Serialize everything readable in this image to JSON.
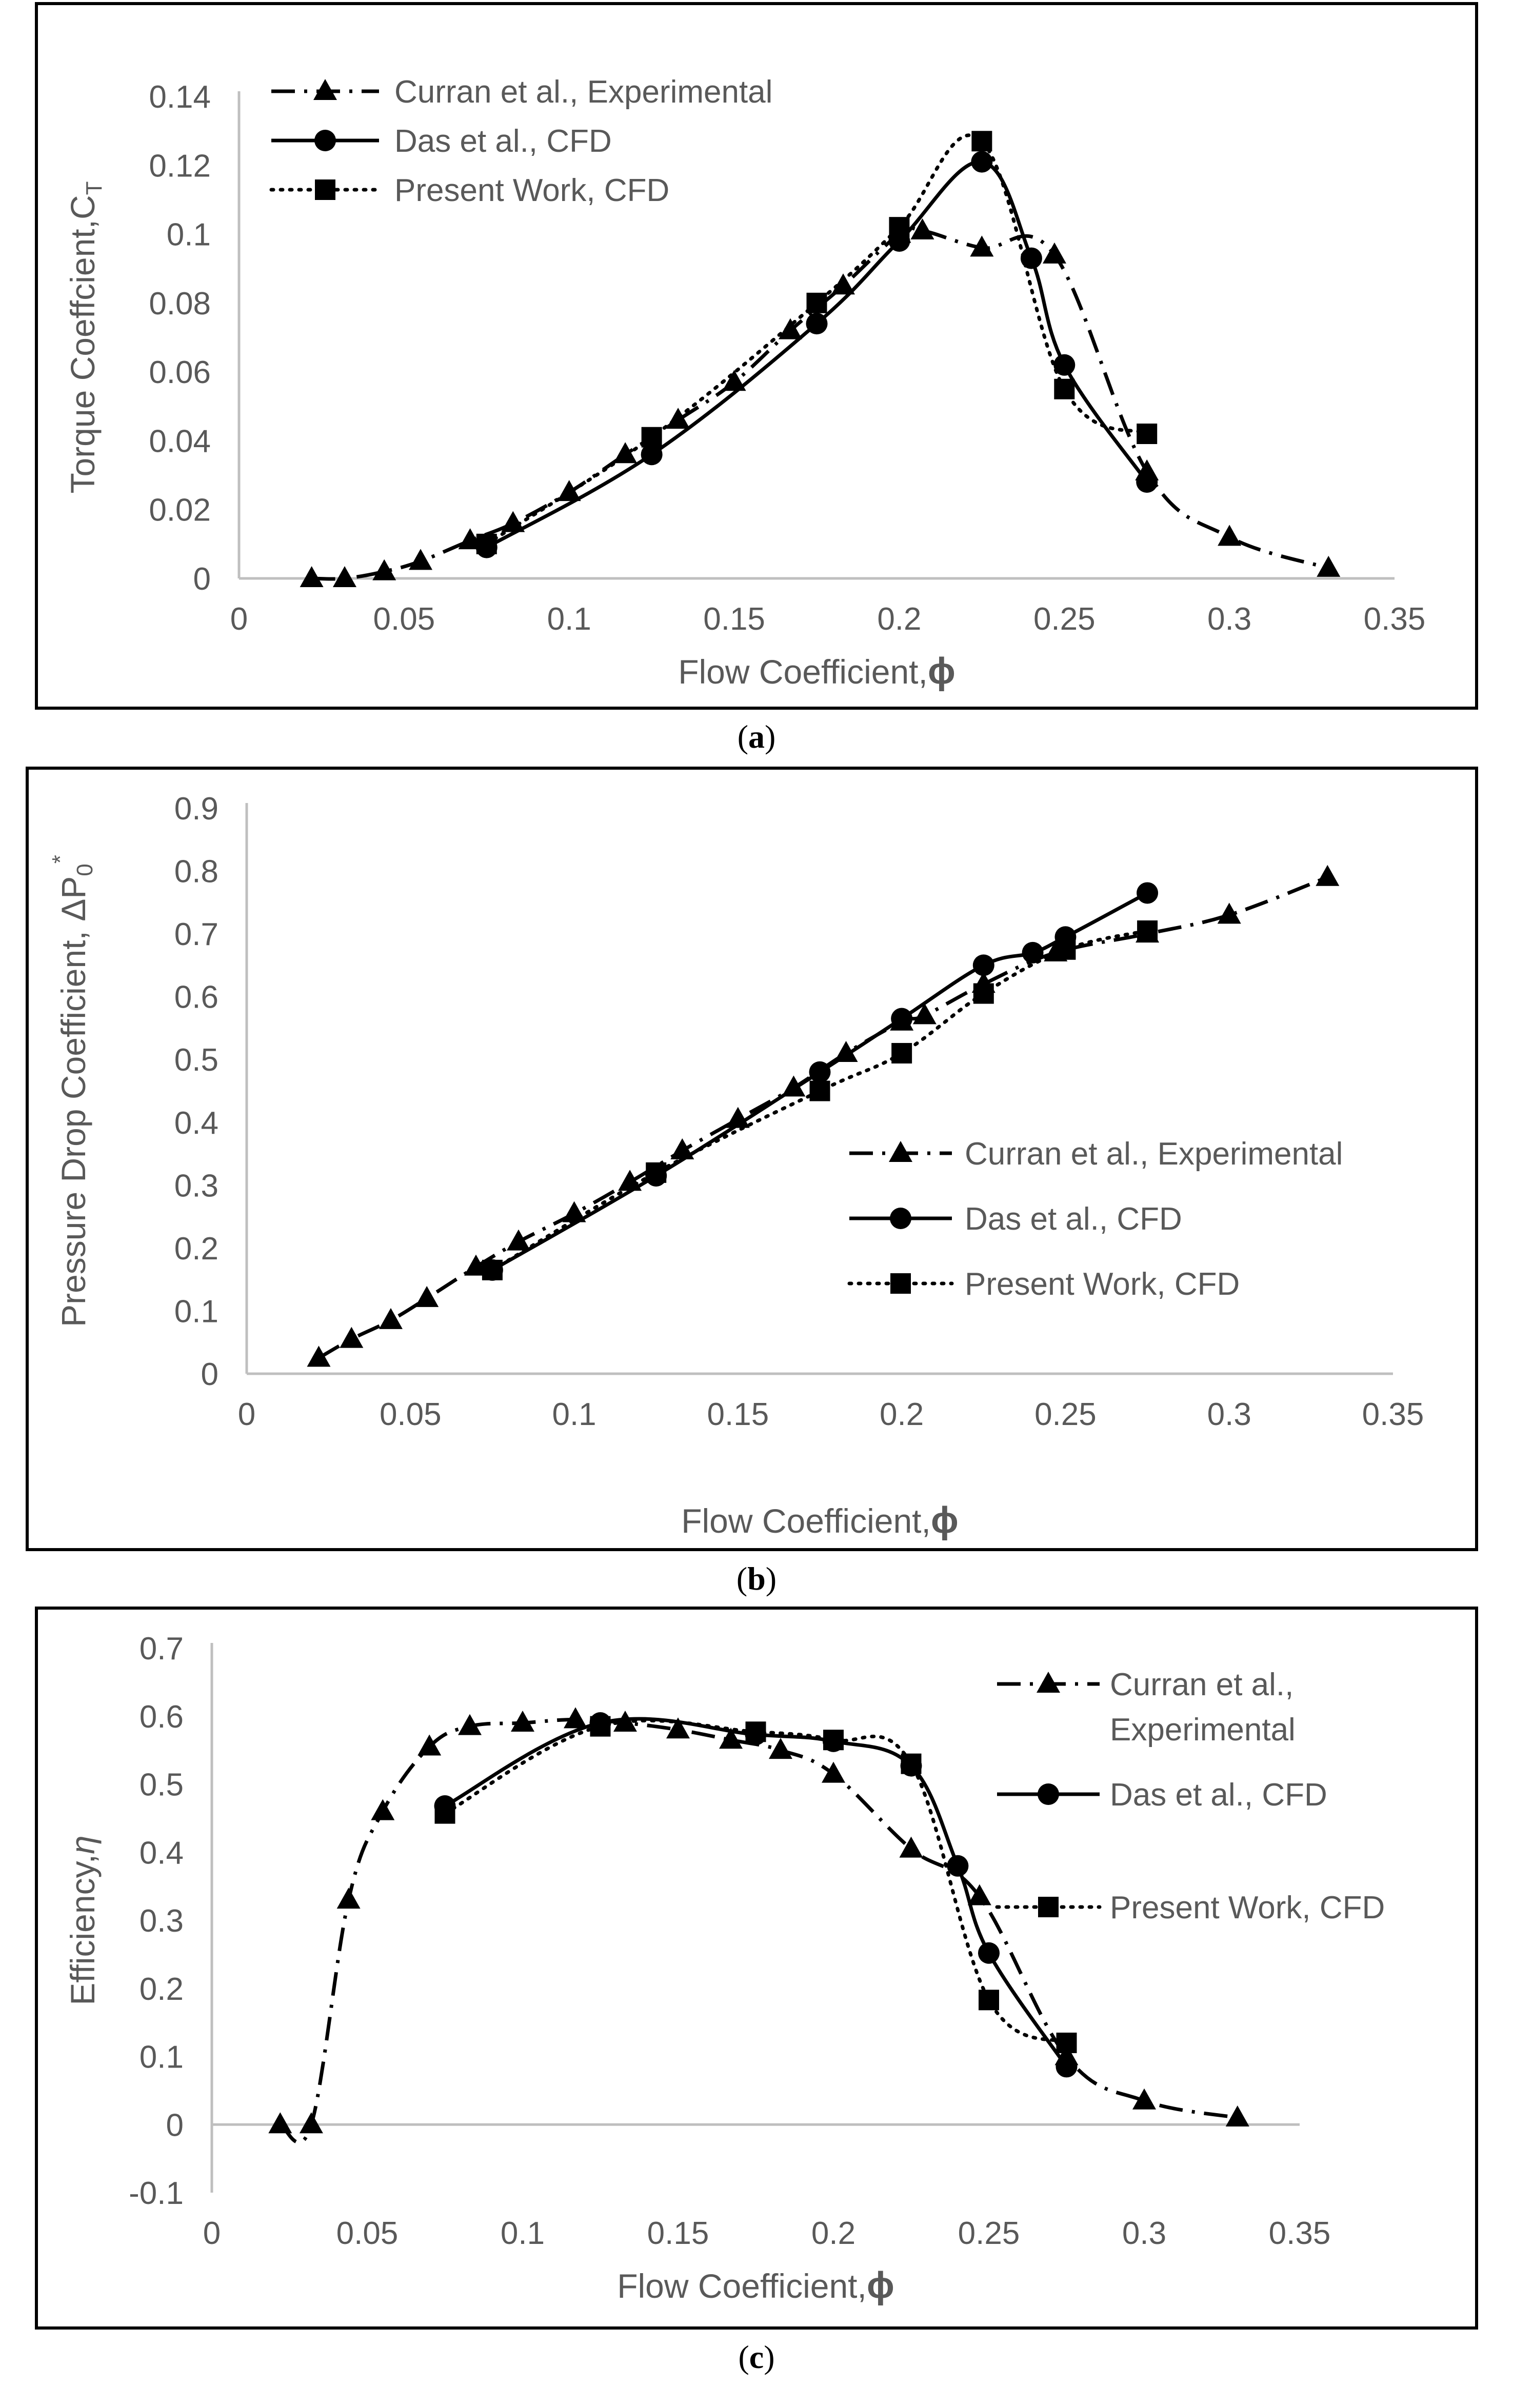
{
  "colors": {
    "series": "#000000",
    "text": "#595959",
    "axis": "#bfbfbf"
  },
  "chart_data": [
    {
      "id": "a",
      "caption": "a",
      "type": "line",
      "xlabel": "Flow Coefficient,",
      "xsymbol": "ϕ",
      "ylabel": "Torque Coeffcient,C",
      "ylabel_sub": "T",
      "xlim": [
        0,
        0.35
      ],
      "ylim": [
        0,
        0.14
      ],
      "x_ticks": [
        "0",
        "0.05",
        "0.1",
        "0.15",
        "0.2",
        "0.25",
        "0.3",
        "0.35"
      ],
      "y_ticks": [
        "0",
        "0.02",
        "0.04",
        "0.06",
        "0.08",
        "0.1",
        "0.12",
        "0.14"
      ],
      "legend_position": "top-left",
      "series": [
        {
          "name": "Curran et al., Experimental",
          "marker": "triangle",
          "dash": "dashdot",
          "x": [
            0.022,
            0.032,
            0.044,
            0.055,
            0.07,
            0.083,
            0.1,
            0.117,
            0.133,
            0.15,
            0.167,
            0.183,
            0.2,
            0.207,
            0.225,
            0.247,
            0.275,
            0.3,
            0.33
          ],
          "y": [
            0.0,
            0.0,
            0.002,
            0.005,
            0.011,
            0.016,
            0.025,
            0.036,
            0.046,
            0.057,
            0.072,
            0.085,
            0.1,
            0.101,
            0.096,
            0.094,
            0.031,
            0.012,
            0.003
          ]
        },
        {
          "name": "Das et al., CFD",
          "marker": "circle",
          "dash": "solid",
          "x": [
            0.075,
            0.125,
            0.175,
            0.2,
            0.225,
            0.24,
            0.25,
            0.275
          ],
          "y": [
            0.009,
            0.036,
            0.074,
            0.098,
            0.121,
            0.093,
            0.062,
            0.028
          ]
        },
        {
          "name": "Present Work, CFD",
          "marker": "square",
          "dash": "dotted",
          "x": [
            0.075,
            0.125,
            0.175,
            0.2,
            0.225,
            0.25,
            0.275
          ],
          "y": [
            0.01,
            0.041,
            0.08,
            0.102,
            0.127,
            0.055,
            0.042
          ]
        }
      ]
    },
    {
      "id": "b",
      "caption": "b",
      "type": "line",
      "xlabel": "Flow Coefficient,",
      "xsymbol": "ϕ",
      "ylabel": "Pressure Drop Coefficient, ΔP",
      "ylabel_sub": "0",
      "ylabel_sup": "*",
      "xlim": [
        0,
        0.35
      ],
      "ylim": [
        0,
        0.9
      ],
      "x_ticks": [
        "0",
        "0.05",
        "0.1",
        "0.15",
        "0.2",
        "0.25",
        "0.3",
        "0.35"
      ],
      "y_ticks": [
        "0",
        "0.1",
        "0.2",
        "0.3",
        "0.4",
        "0.5",
        "0.6",
        "0.7",
        "0.8",
        "0.9"
      ],
      "legend_position": "right-center",
      "series": [
        {
          "name": "Curran et al., Experimental",
          "marker": "triangle",
          "dash": "dashdot",
          "x": [
            0.022,
            0.032,
            0.044,
            0.055,
            0.07,
            0.083,
            0.1,
            0.117,
            0.133,
            0.15,
            0.167,
            0.183,
            0.2,
            0.207,
            0.225,
            0.247,
            0.275,
            0.3,
            0.33
          ],
          "y": [
            0.025,
            0.055,
            0.085,
            0.12,
            0.17,
            0.21,
            0.255,
            0.305,
            0.355,
            0.405,
            0.455,
            0.51,
            0.56,
            0.57,
            0.62,
            0.67,
            0.7,
            0.73,
            0.79
          ]
        },
        {
          "name": "Das et al., CFD",
          "marker": "circle",
          "dash": "solid",
          "x": [
            0.075,
            0.125,
            0.175,
            0.2,
            0.225,
            0.24,
            0.25,
            0.275
          ],
          "y": [
            0.165,
            0.315,
            0.48,
            0.565,
            0.65,
            0.67,
            0.695,
            0.765
          ]
        },
        {
          "name": "Present Work, CFD",
          "marker": "square",
          "dash": "dotted",
          "x": [
            0.075,
            0.125,
            0.175,
            0.2,
            0.225,
            0.25,
            0.275
          ],
          "y": [
            0.165,
            0.32,
            0.45,
            0.51,
            0.605,
            0.675,
            0.705
          ]
        }
      ]
    },
    {
      "id": "c",
      "caption": "c",
      "type": "line",
      "xlabel": "Flow Coefficient,",
      "xsymbol": "ϕ",
      "ylabel": "Efficiency,",
      "ylabel_symbol": "η",
      "xlim": [
        0,
        0.35
      ],
      "ylim": [
        -0.1,
        0.7
      ],
      "x_ticks": [
        "0",
        "0.05",
        "0.1",
        "0.15",
        "0.2",
        "0.25",
        "0.3",
        "0.35"
      ],
      "y_ticks": [
        "-0.1",
        "0",
        "0.1",
        "0.2",
        "0.3",
        "0.4",
        "0.5",
        "0.6",
        "0.7"
      ],
      "legend_position": "right",
      "series": [
        {
          "name": "Curran et al.,",
          "name_line2": "Experimental",
          "marker": "triangle",
          "dash": "dashdot",
          "x": [
            0.022,
            0.032,
            0.044,
            0.055,
            0.07,
            0.083,
            0.1,
            0.117,
            0.133,
            0.15,
            0.167,
            0.183,
            0.2,
            0.225,
            0.247,
            0.275,
            0.3,
            0.33
          ],
          "y": [
            0.0,
            0.0,
            0.33,
            0.46,
            0.555,
            0.585,
            0.59,
            0.595,
            0.59,
            0.58,
            0.565,
            0.55,
            0.515,
            0.405,
            0.335,
            0.1,
            0.035,
            0.01
          ]
        },
        {
          "name": "Das et al., CFD",
          "marker": "circle",
          "dash": "solid",
          "x": [
            0.075,
            0.125,
            0.175,
            0.2,
            0.225,
            0.24,
            0.25,
            0.275
          ],
          "y": [
            0.468,
            0.59,
            0.573,
            0.563,
            0.527,
            0.38,
            0.252,
            0.085
          ]
        },
        {
          "name": "Present Work, CFD",
          "marker": "square",
          "dash": "dotted",
          "x": [
            0.075,
            0.125,
            0.175,
            0.2,
            0.225,
            0.25,
            0.275
          ],
          "y": [
            0.457,
            0.585,
            0.577,
            0.565,
            0.53,
            0.183,
            0.12
          ]
        }
      ]
    }
  ]
}
